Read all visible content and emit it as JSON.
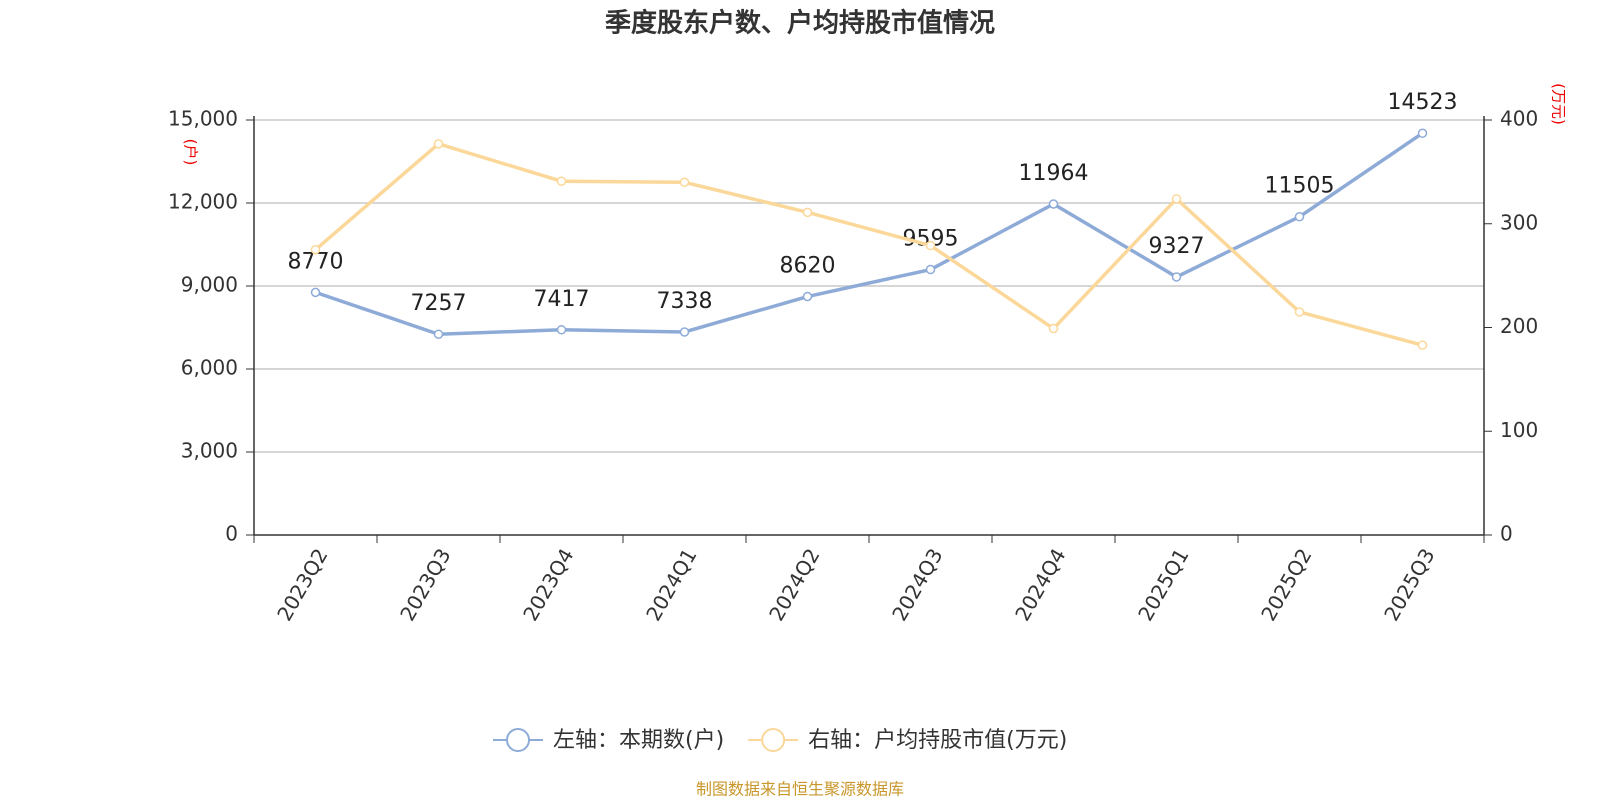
{
  "chart_data": {
    "type": "line",
    "title": "季度股东户数、户均持股市值情况",
    "y_unit": "(户)",
    "y2_unit": "(万元)",
    "categories": [
      "2023Q2",
      "2023Q3",
      "2023Q4",
      "2024Q1",
      "2024Q2",
      "2024Q3",
      "2024Q4",
      "2025Q1",
      "2025Q2",
      "2025Q3"
    ],
    "series": [
      {
        "name": "左轴：本期数(户)",
        "color": "#8eabd8",
        "values": [
          8770,
          7257,
          7417,
          7338,
          8620,
          9595,
          11964,
          9327,
          11505,
          14523
        ]
      },
      {
        "name": "右轴：户均持股市值(万元)",
        "color": "#fbd899",
        "axis": "y2",
        "values": [
          275,
          377,
          341,
          340,
          311,
          279,
          199,
          324,
          215,
          183
        ]
      }
    ],
    "ylim": [
      0,
      15000
    ],
    "yticks": [
      0,
      {
        "value": 3000,
        "label": "3,000"
      },
      {
        "value": 6000,
        "label": "6,000"
      },
      {
        "value": 9000,
        "label": "9,000"
      },
      {
        "value": 12000,
        "label": "12,000"
      },
      {
        "value": 15000,
        "label": "15,000"
      }
    ],
    "y2lim": [
      0,
      400
    ],
    "y2ticks": [
      0,
      100,
      200,
      300,
      400
    ],
    "grid": true,
    "source": "制图数据来自恒生聚源数据库"
  }
}
